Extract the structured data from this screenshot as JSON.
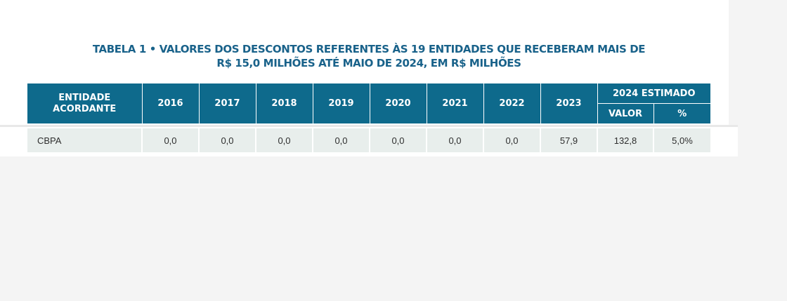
{
  "title": {
    "line1": "TABELA 1 • VALORES DOS DESCONTOS REFERENTES ÀS 19 ENTIDADES QUE RECEBERAM MAIS DE",
    "line2": "R$ 15,0 MILHÕES ATÉ MAIO DE 2024, EM R$ MILHÕES"
  },
  "table": {
    "header_entity": "ENTIDADE ACORDANTE",
    "years": [
      "2016",
      "2017",
      "2018",
      "2019",
      "2020",
      "2021",
      "2022",
      "2023"
    ],
    "estimated_group": "2024 ESTIMADO",
    "estimated_sub": [
      "VALOR",
      "%"
    ],
    "rows": [
      {
        "entity": "CBPA",
        "values": [
          "0,0",
          "0,0",
          "0,0",
          "0,0",
          "0,0",
          "0,0",
          "0,0",
          "57,9",
          "132,8",
          "5,0%"
        ]
      }
    ]
  },
  "colors": {
    "title": "#19628a",
    "header_bg": "#0e6a8c",
    "row_bg": "#e8eeec",
    "page_bg": "#f4f4f4"
  }
}
